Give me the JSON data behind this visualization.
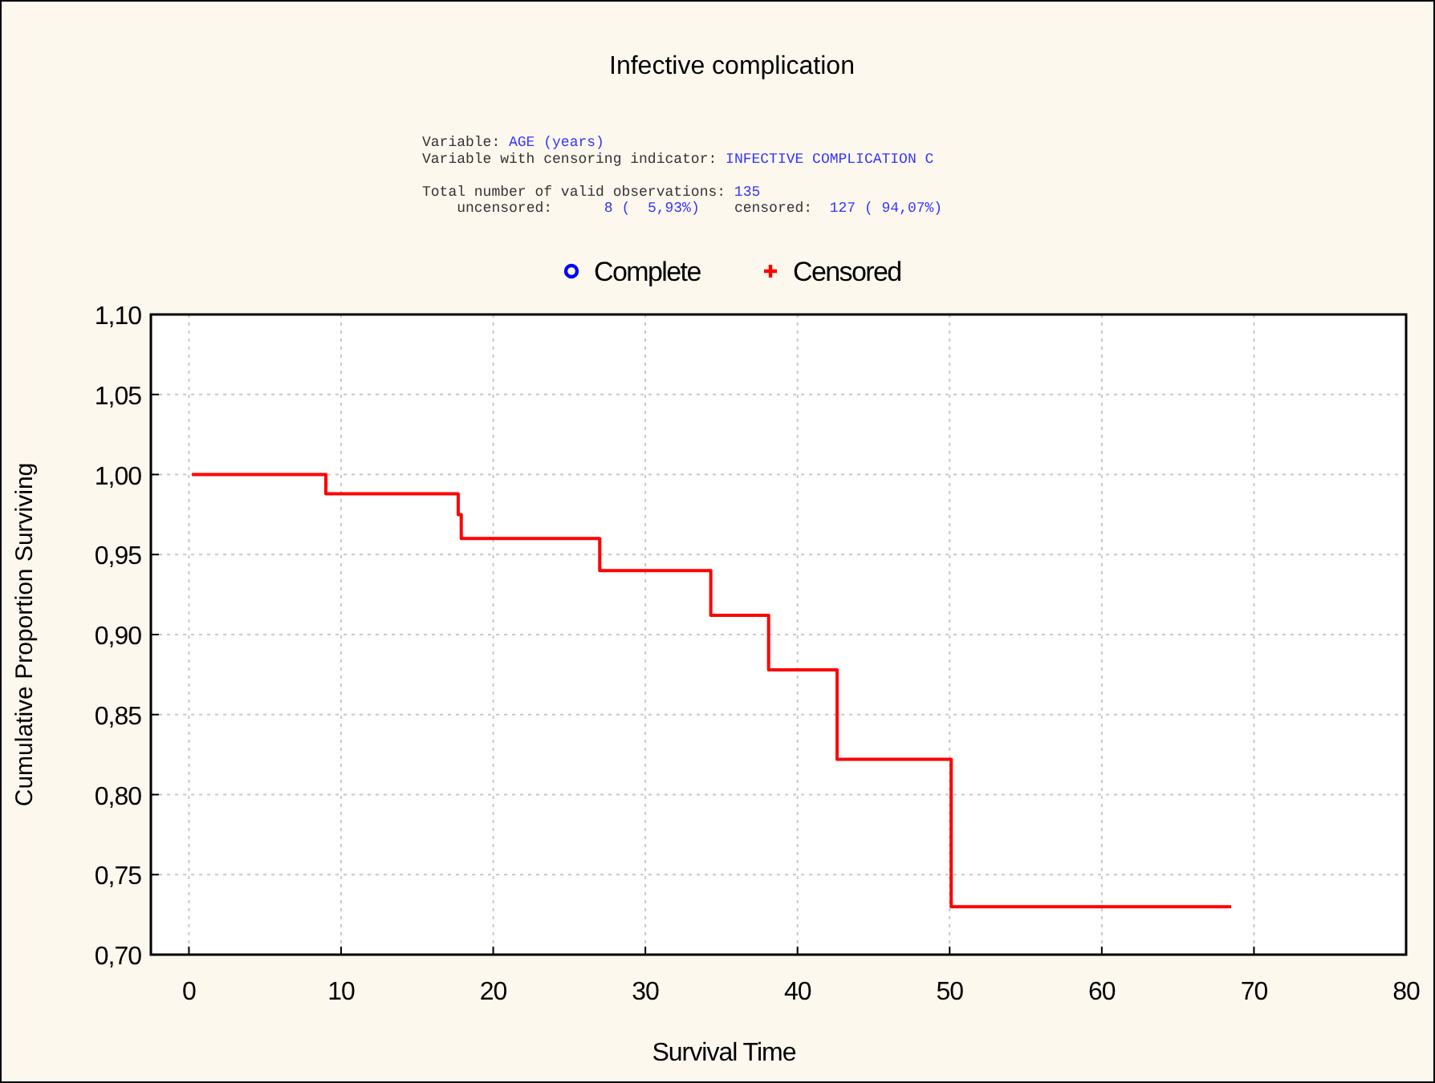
{
  "chart_data": {
    "type": "step",
    "title": "Infective complication",
    "annotations": [
      "Variable: AGE (years)",
      "Variable with censoring indicator: INFECTIVE COMPLICATION C",
      "Total number of valid observations: 135",
      "    uncensored:      8 (  5,93%)    censored:  127 ( 94,07%)"
    ],
    "xlabel": "Survival Time",
    "ylabel": "Cumulative Proportion Surviving",
    "x": [
      0.2,
      9,
      17.7,
      17.9,
      27,
      34.3,
      38.1,
      42.6,
      50.1,
      68.5
    ],
    "series": [
      {
        "color": "#ff0000",
        "values": [
          1.0,
          0.988,
          0.975,
          0.96,
          0.94,
          0.912,
          0.878,
          0.822,
          0.73,
          0.73
        ]
      },
      {
        "type": "scatter",
        "name": "Complete",
        "color": "#0000ff",
        "marker": "circle",
        "values": [
          null,
          null,
          null,
          null,
          null,
          null,
          null,
          null,
          null,
          null
        ]
      },
      {
        "type": "scatter",
        "name": "Censored",
        "color": "#ff0000",
        "marker": "cross",
        "values": [
          null,
          null,
          null,
          null,
          null,
          null,
          null,
          null,
          null,
          null
        ]
      }
    ],
    "xlim": [
      -2.5,
      80
    ],
    "xticks": [
      0,
      10,
      20,
      30,
      40,
      50,
      60,
      70,
      80
    ],
    "ylim": [
      0.7,
      1.1
    ],
    "yticks": [
      {
        "value": 0.7,
        "label": "0,70"
      },
      {
        "value": 0.75,
        "label": "0,75"
      },
      {
        "value": 0.8,
        "label": "0,80"
      },
      {
        "value": 0.85,
        "label": "0,85"
      },
      {
        "value": 0.9,
        "label": "0,90"
      },
      {
        "value": 0.95,
        "label": "0,95"
      },
      {
        "value": 1.0,
        "label": "1,00"
      },
      {
        "value": 1.05,
        "label": "1,05"
      },
      {
        "value": 1.1,
        "label": "1,10"
      }
    ],
    "grid": true,
    "legend": "top"
  }
}
